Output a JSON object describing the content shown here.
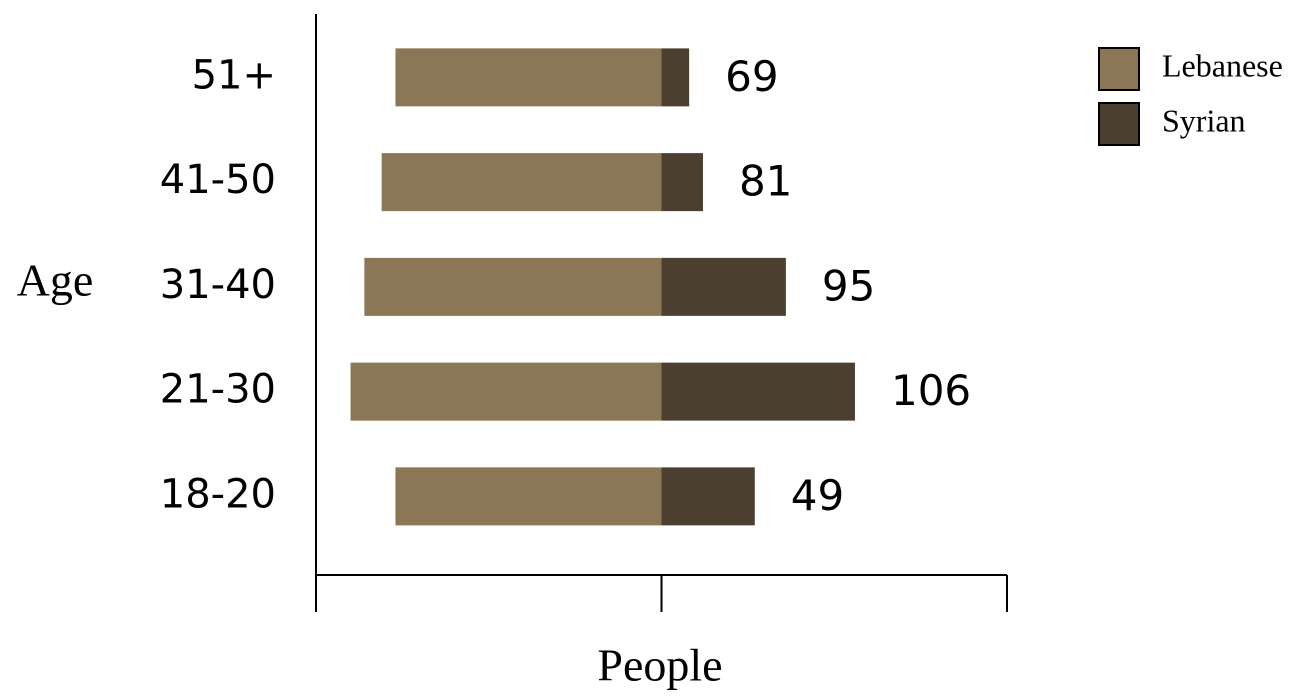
{
  "chart_data": {
    "type": "diverging-bar",
    "x_label": "People",
    "y_label": "Age",
    "categories": [
      "51+",
      "41-50",
      "31-40",
      "21-30",
      "18-20"
    ],
    "series": [
      {
        "name": "Lebanese",
        "color": "#8b7655",
        "direction": "left",
        "values": [
          77,
          81,
          86,
          90,
          77
        ]
      },
      {
        "name": "Syrian",
        "color": "#4b4030",
        "direction": "right",
        "values": [
          8,
          12,
          36,
          56,
          27
        ]
      }
    ],
    "totals": [
      69,
      81,
      95,
      106,
      49
    ],
    "xlim": [
      -100,
      100
    ],
    "xticks": [
      -100,
      0,
      100
    ],
    "legend": "top-right"
  }
}
